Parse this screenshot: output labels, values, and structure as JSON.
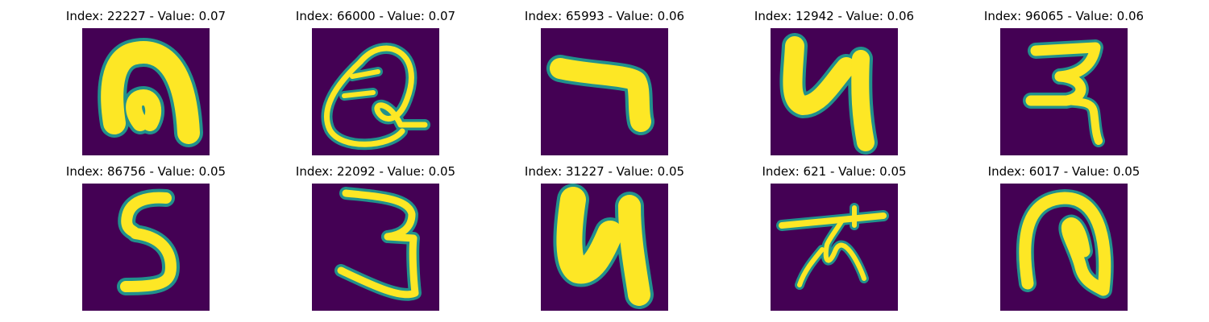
{
  "colors": {
    "background": "#440154",
    "stroke_edge": "#21918c",
    "stroke_core": "#fde725"
  },
  "panels": [
    {
      "title": "Index: 22227 - Value: 0.07",
      "glyph": "n-shape"
    },
    {
      "title": "Index: 66000 - Value: 0.07",
      "glyph": "Q-shape"
    },
    {
      "title": "Index: 65993 - Value: 0.06",
      "glyph": "hook-7-shape"
    },
    {
      "title": "Index: 12942 - Value: 0.06",
      "glyph": "4-shape"
    },
    {
      "title": "Index: 96065 - Value: 0.06",
      "glyph": "3-like-shape"
    },
    {
      "title": "Index: 86756 - Value: 0.05",
      "glyph": "5-shape"
    },
    {
      "title": "Index: 22092 - Value: 0.05",
      "glyph": "3-shape"
    },
    {
      "title": "Index: 31227 - Value: 0.05",
      "glyph": "4-shape"
    },
    {
      "title": "Index: 621 - Value: 0.05",
      "glyph": "star-shape"
    },
    {
      "title": "Index: 6017 - Value: 0.05",
      "glyph": "loop-shape"
    }
  ]
}
